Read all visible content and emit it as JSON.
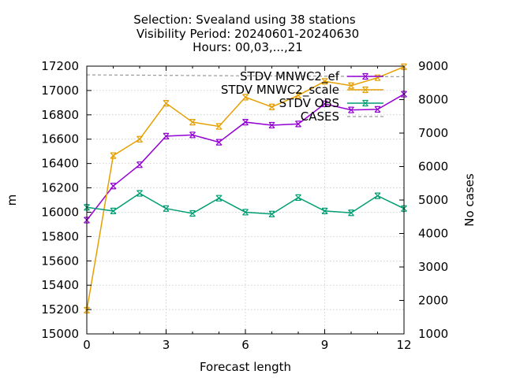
{
  "chart_data": {
    "type": "line",
    "title_lines": [
      "Selection: Svealand using    38 stations",
      "Visibility   Period: 20240601-20240630",
      "Hours: 00,03,...,21"
    ],
    "xlabel": "Forecast length",
    "ylabel": "m",
    "y2label": "No cases",
    "xlim": [
      0,
      12
    ],
    "xticks": [
      0,
      3,
      6,
      9,
      12
    ],
    "ylim": [
      15000,
      17200
    ],
    "yticks": [
      15000,
      15200,
      15400,
      15600,
      15800,
      16000,
      16200,
      16400,
      16600,
      16800,
      17000,
      17200
    ],
    "y2lim": [
      1000,
      9000
    ],
    "y2ticks": [
      1000,
      2000,
      3000,
      4000,
      5000,
      6000,
      7000,
      8000,
      9000
    ],
    "grid": true,
    "legend_position": "top-right",
    "x": [
      0,
      1,
      2,
      3,
      4,
      5,
      6,
      7,
      8,
      9,
      10,
      11,
      12
    ],
    "series": [
      {
        "name": "STDV MNWC2_ef",
        "color": "#9400d3",
        "axis": "y",
        "style": "line-points",
        "values": [
          15935,
          16215,
          16390,
          16625,
          16635,
          16575,
          16740,
          16715,
          16725,
          16890,
          16840,
          16845,
          16970
        ]
      },
      {
        "name": "STDV MNWC2_scale",
        "color": "#e69f00",
        "axis": "y",
        "style": "line-points",
        "values": [
          15195,
          16465,
          16600,
          16895,
          16740,
          16705,
          16945,
          16865,
          16960,
          17075,
          17040,
          17105,
          17195
        ]
      },
      {
        "name": "STDV OBS",
        "color": "#009e73",
        "axis": "y",
        "style": "line-points",
        "values": [
          16040,
          16010,
          16155,
          16030,
          15990,
          16115,
          16000,
          15985,
          16120,
          16010,
          15995,
          16135,
          16030
        ]
      },
      {
        "name": "CASES",
        "color": "#999999",
        "axis": "y2",
        "style": "dashed",
        "values": [
          8740,
          8735,
          8730,
          8725,
          8720,
          8715,
          8712,
          8708,
          8705,
          8700,
          8695,
          8690,
          8685
        ]
      }
    ]
  }
}
